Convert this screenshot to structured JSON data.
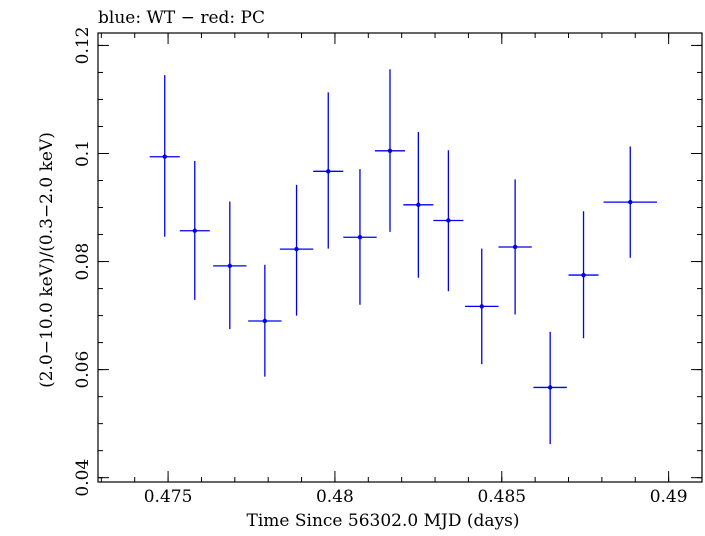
{
  "chart_data": {
    "type": "scatter",
    "title": "blue: WT − red: PC",
    "xlabel": "Time Since 56302.0 MJD (days)",
    "ylabel": "(2.0−10.0 keV)/(0.3−2.0 keV)",
    "xlim": [
      0.4729,
      0.491
    ],
    "ylim": [
      0.0392,
      0.1223
    ],
    "xticks": [
      {
        "value": 0.475,
        "label": "0.475"
      },
      {
        "value": 0.48,
        "label": "0.48"
      },
      {
        "value": 0.485,
        "label": "0.485"
      },
      {
        "value": 0.49,
        "label": "0.49"
      }
    ],
    "yticks": [
      {
        "value": 0.04,
        "label": "0.04"
      },
      {
        "value": 0.06,
        "label": "0.06"
      },
      {
        "value": 0.08,
        "label": "0.08"
      },
      {
        "value": 0.1,
        "label": "0.1"
      },
      {
        "value": 0.12,
        "label": "0.12"
      }
    ],
    "x_minor_step": 0.001,
    "y_minor_step": 0.005,
    "grid": false,
    "series": [
      {
        "color": "#0000ee",
        "points": [
          {
            "x": 0.4749,
            "y": 0.0994,
            "xerr_lo": 0.00045,
            "xerr_hi": 0.00045,
            "yerr_lo": 0.0148,
            "yerr_hi": 0.0151
          },
          {
            "x": 0.4758,
            "y": 0.0857,
            "xerr_lo": 0.00045,
            "xerr_hi": 0.00045,
            "yerr_lo": 0.0128,
            "yerr_hi": 0.0129
          },
          {
            "x": 0.47685,
            "y": 0.0792,
            "xerr_lo": 0.0005,
            "xerr_hi": 0.0005,
            "yerr_lo": 0.0117,
            "yerr_hi": 0.0119
          },
          {
            "x": 0.4779,
            "y": 0.069,
            "xerr_lo": 0.0005,
            "xerr_hi": 0.0005,
            "yerr_lo": 0.0103,
            "yerr_hi": 0.0104
          },
          {
            "x": 0.47885,
            "y": 0.0823,
            "xerr_lo": 0.0005,
            "xerr_hi": 0.0005,
            "yerr_lo": 0.0123,
            "yerr_hi": 0.0119
          },
          {
            "x": 0.4798,
            "y": 0.0967,
            "xerr_lo": 0.00045,
            "xerr_hi": 0.00045,
            "yerr_lo": 0.0143,
            "yerr_hi": 0.0146
          },
          {
            "x": 0.48075,
            "y": 0.0845,
            "xerr_lo": 0.0005,
            "xerr_hi": 0.0005,
            "yerr_lo": 0.0125,
            "yerr_hi": 0.0126
          },
          {
            "x": 0.48165,
            "y": 0.1005,
            "xerr_lo": 0.00045,
            "xerr_hi": 0.00045,
            "yerr_lo": 0.015,
            "yerr_hi": 0.0151
          },
          {
            "x": 0.4825,
            "y": 0.0905,
            "xerr_lo": 0.00045,
            "xerr_hi": 0.00045,
            "yerr_lo": 0.0135,
            "yerr_hi": 0.0135
          },
          {
            "x": 0.4834,
            "y": 0.0876,
            "xerr_lo": 0.00045,
            "xerr_hi": 0.00045,
            "yerr_lo": 0.0131,
            "yerr_hi": 0.013
          },
          {
            "x": 0.4844,
            "y": 0.0717,
            "xerr_lo": 0.0005,
            "xerr_hi": 0.0005,
            "yerr_lo": 0.0107,
            "yerr_hi": 0.0107
          },
          {
            "x": 0.4854,
            "y": 0.0827,
            "xerr_lo": 0.0005,
            "xerr_hi": 0.0005,
            "yerr_lo": 0.0125,
            "yerr_hi": 0.0125
          },
          {
            "x": 0.48645,
            "y": 0.0567,
            "xerr_lo": 0.0005,
            "xerr_hi": 0.0005,
            "yerr_lo": 0.0105,
            "yerr_hi": 0.0103
          },
          {
            "x": 0.48745,
            "y": 0.0775,
            "xerr_lo": 0.00045,
            "xerr_hi": 0.00045,
            "yerr_lo": 0.0117,
            "yerr_hi": 0.0118
          },
          {
            "x": 0.48885,
            "y": 0.091,
            "xerr_lo": 0.0008,
            "xerr_hi": 0.0008,
            "yerr_lo": 0.0103,
            "yerr_hi": 0.0103
          }
        ]
      }
    ]
  }
}
